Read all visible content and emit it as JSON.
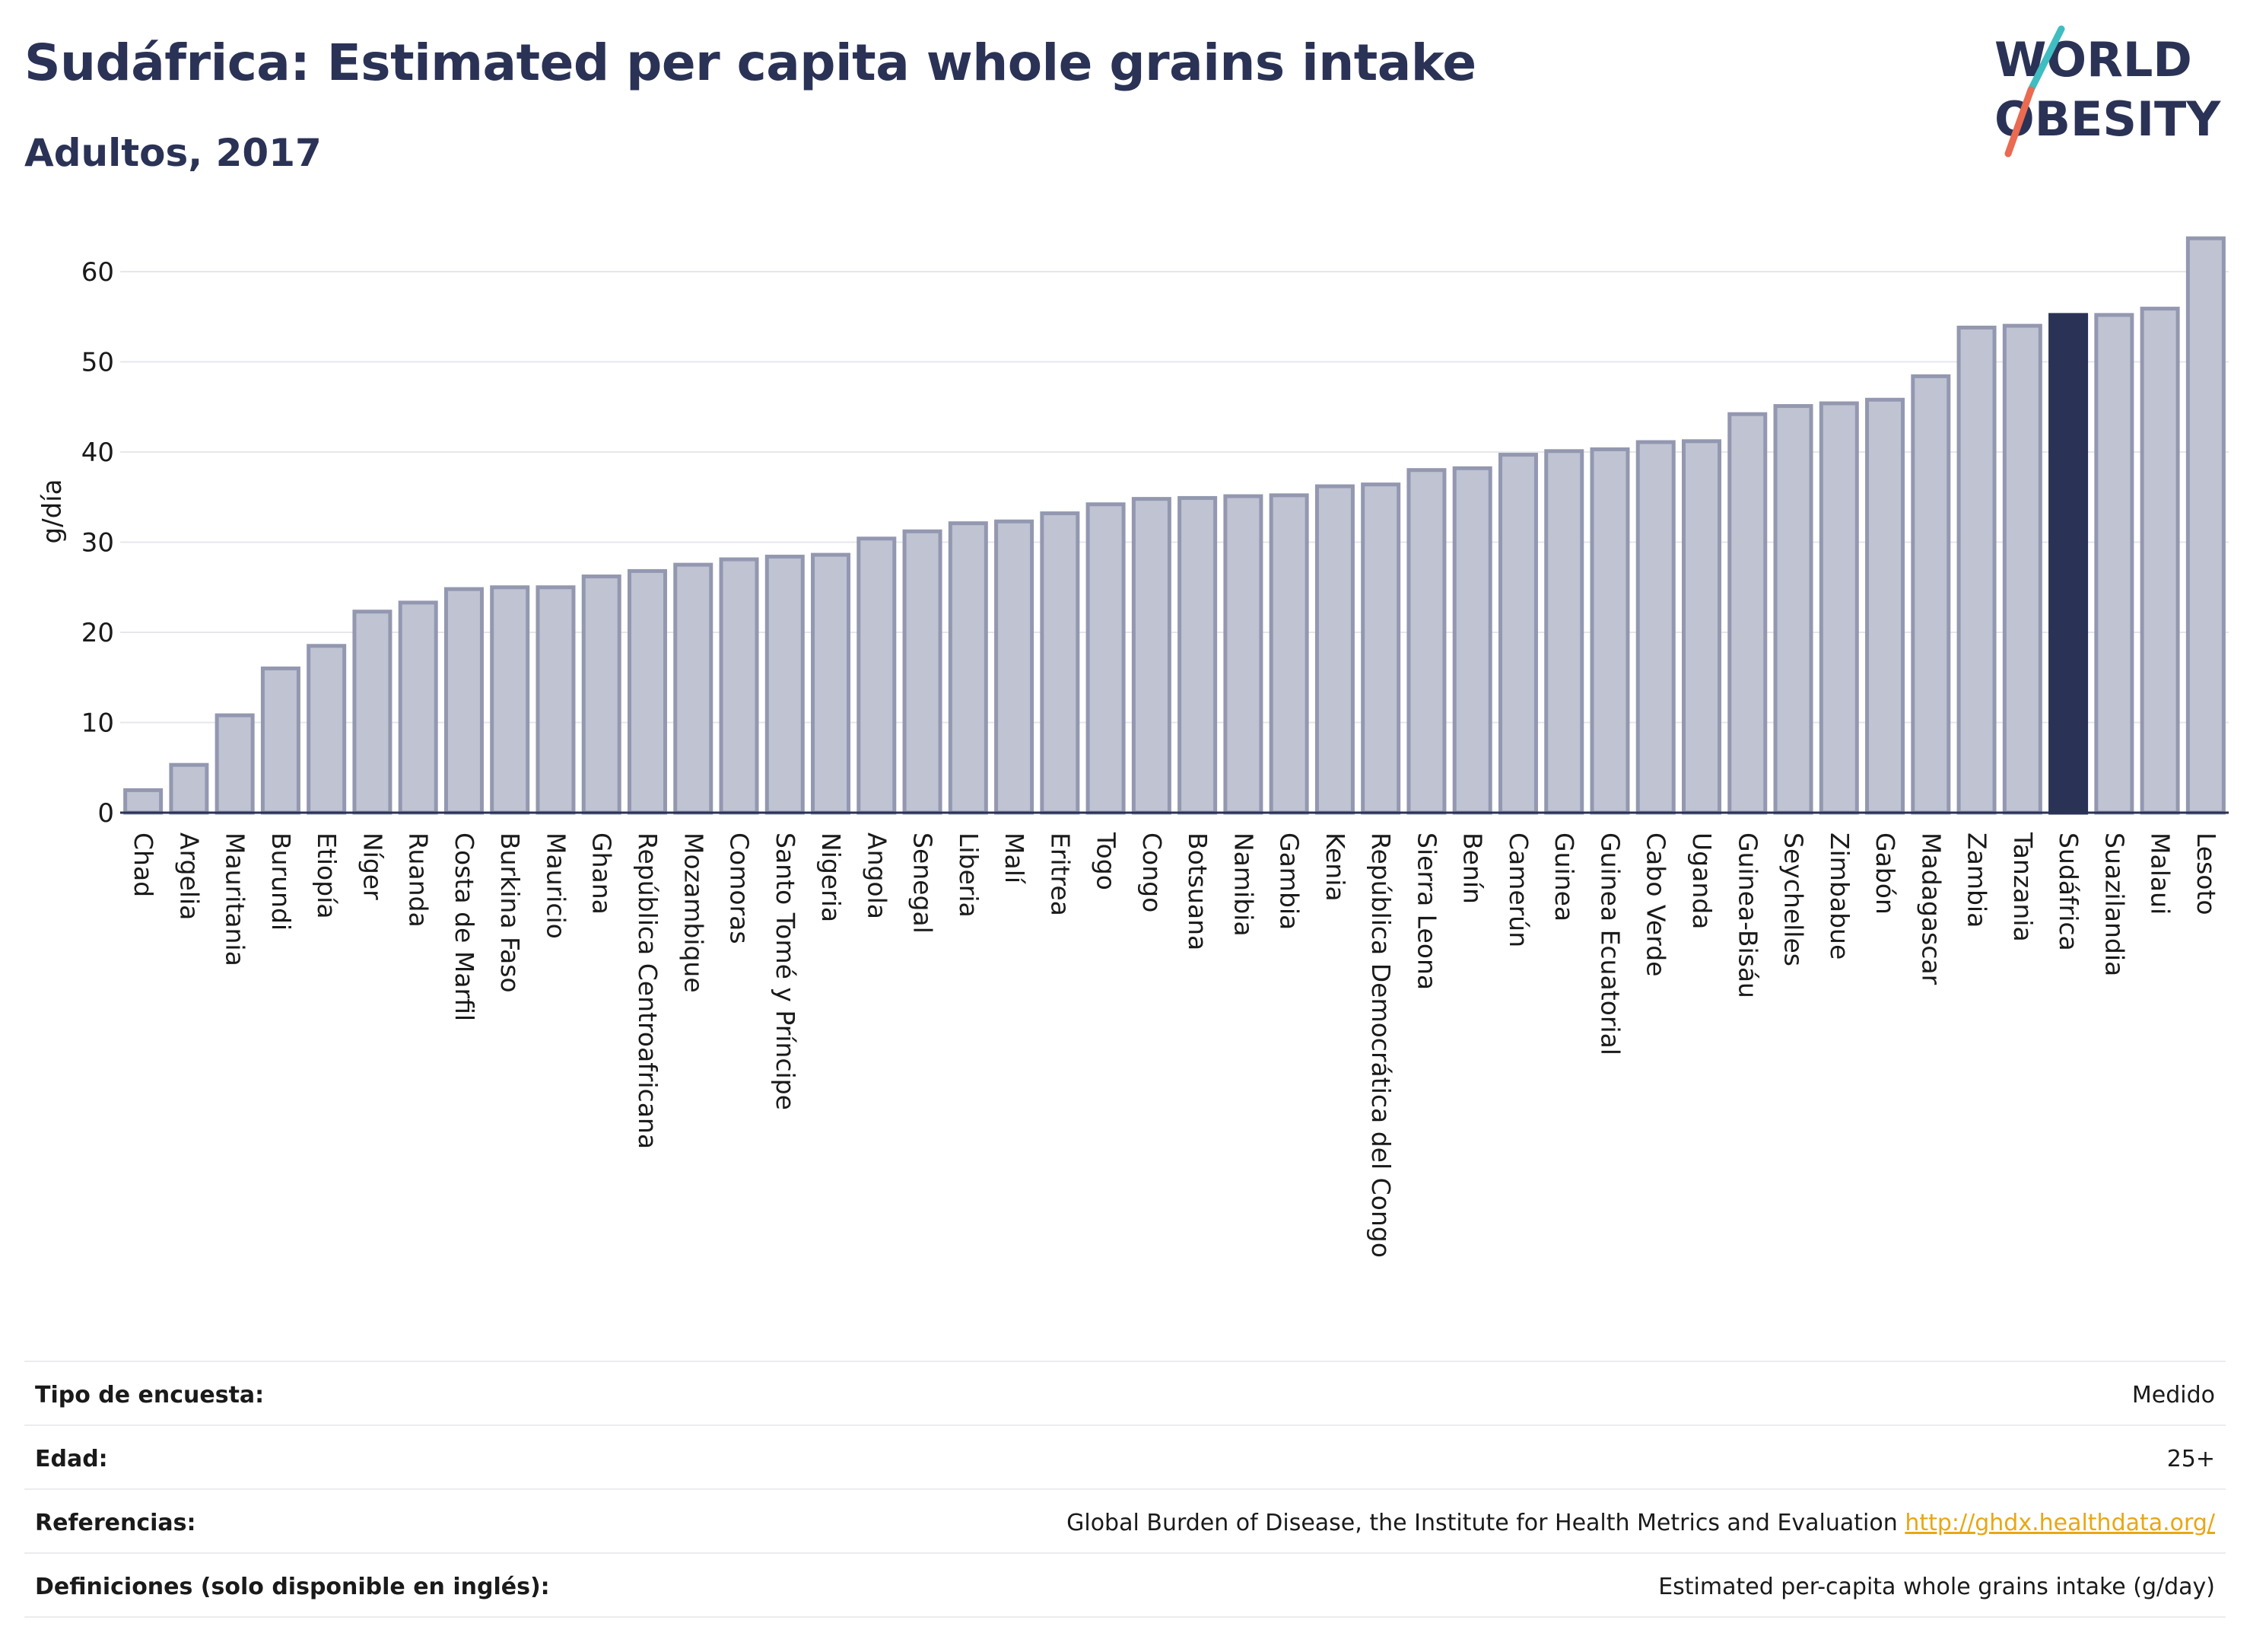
{
  "title": "Sudáfrica: Estimated per capita whole grains intake",
  "subtitle": "Adultos, 2017",
  "logo": {
    "line1": "WORLD",
    "line2": "OBESITY"
  },
  "colors": {
    "bar": "#bfc3d2",
    "bar_stroke": "#9398b0",
    "highlight": "#2a3256",
    "grid": "#e6e7ec",
    "link": "#e8a714"
  },
  "chart_data": {
    "type": "bar",
    "ylabel": "g/día",
    "xlabel": "",
    "ylim": [
      0,
      65
    ],
    "yticks": [
      0,
      10,
      20,
      30,
      40,
      50,
      60
    ],
    "highlight": "Sudáfrica",
    "categories": [
      "Chad",
      "Argelia",
      "Mauritania",
      "Burundi",
      "Etiopía",
      "Níger",
      "Ruanda",
      "Costa de Marfil",
      "Burkina Faso",
      "Mauricio",
      "Ghana",
      "República Centroafricana",
      "Mozambique",
      "Comoras",
      "Santo Tomé y Príncipe",
      "Nigeria",
      "Angola",
      "Senegal",
      "Liberia",
      "Malí",
      "Eritrea",
      "Togo",
      "Congo",
      "Botsuana",
      "Namibia",
      "Gambia",
      "Kenia",
      "República Democrática del Congo",
      "Sierra Leona",
      "Benín",
      "Camerún",
      "Guinea",
      "Guinea Ecuatorial",
      "Cabo Verde",
      "Uganda",
      "Guinea-Bisáu",
      "Seychelles",
      "Zimbabue",
      "Gabón",
      "Madagascar",
      "Zambia",
      "Tanzania",
      "Sudáfrica",
      "Suazilandia",
      "Malaui",
      "Lesoto"
    ],
    "values": [
      2.5,
      5.3,
      10.8,
      16.0,
      18.5,
      22.3,
      23.3,
      24.8,
      25.0,
      25.0,
      26.2,
      26.8,
      27.5,
      28.1,
      28.4,
      28.6,
      30.4,
      31.2,
      32.1,
      32.3,
      33.2,
      34.2,
      34.8,
      34.9,
      35.1,
      35.2,
      36.2,
      36.4,
      38.0,
      38.2,
      39.7,
      40.1,
      40.3,
      41.1,
      41.2,
      44.2,
      45.1,
      45.4,
      45.8,
      48.4,
      53.8,
      54.0,
      55.2,
      55.2,
      55.9,
      63.7
    ],
    "grid": true
  },
  "info": {
    "rows": [
      {
        "label": "Tipo de encuesta:",
        "value": "Medido"
      },
      {
        "label": "Edad:",
        "value": "25+"
      },
      {
        "label": "Referencias:",
        "value": "Global Burden of Disease, the Institute for Health Metrics and Evaluation",
        "link": "http://ghdx.healthdata.org/"
      },
      {
        "label": "Definiciones (solo disponible en inglés):",
        "value": "Estimated per-capita whole grains intake (g/day)"
      }
    ]
  }
}
